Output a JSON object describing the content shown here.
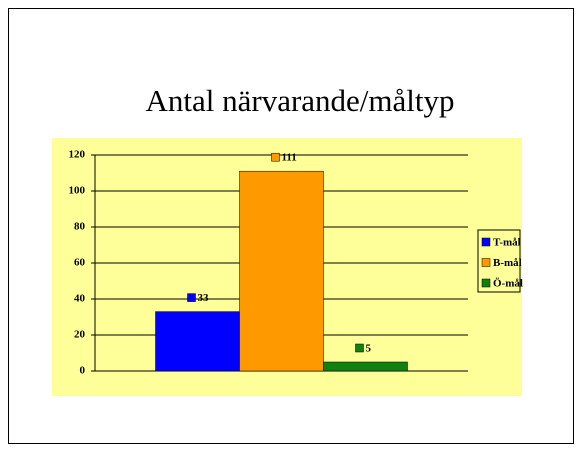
{
  "chart_data": {
    "type": "bar",
    "title": "Antal närvarande/måltyp",
    "categories": [
      null
    ],
    "series": [
      {
        "name": "T-mål",
        "color": "#0000ff",
        "values": [
          33
        ]
      },
      {
        "name": "B-mål",
        "color": "#ff9900",
        "values": [
          111
        ]
      },
      {
        "name": "Ö-mål",
        "color": "#108010",
        "values": [
          5
        ]
      }
    ],
    "ylim": [
      0,
      120
    ],
    "yticks": [
      0,
      20,
      40,
      60,
      80,
      100,
      120
    ],
    "grid": true,
    "legend": "right"
  }
}
